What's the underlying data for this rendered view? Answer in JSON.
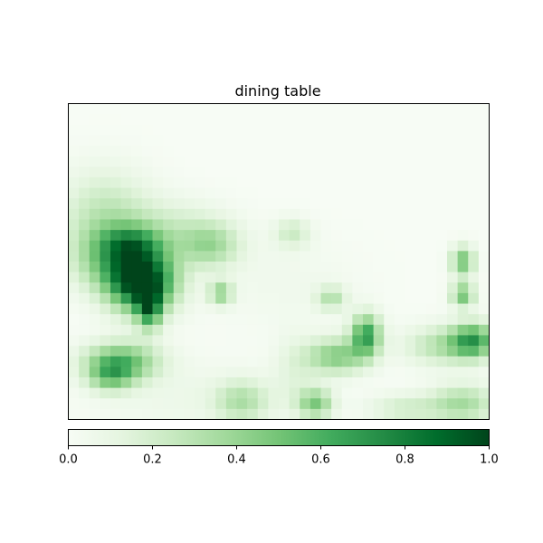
{
  "chart_data": {
    "type": "heatmap",
    "title": "dining table",
    "colormap": "Greens",
    "vmin": 0.0,
    "vmax": 1.0,
    "grid": false,
    "x_ticks_visible": false,
    "y_ticks_visible": false,
    "colorbar": {
      "orientation": "horizontal",
      "placement": "bottom",
      "ticks": [
        0.0,
        0.2,
        0.4,
        0.6,
        0.8,
        1.0
      ],
      "tick_labels": [
        "0.0",
        "0.2",
        "0.4",
        "0.6",
        "0.8",
        "1.0"
      ]
    },
    "rows": 30,
    "cols": 40,
    "blobs": [
      {
        "cx": 6.5,
        "cy": 16.5,
        "sx": 2.2,
        "sy": 2.0,
        "v": 1.0
      },
      {
        "cx": 7.2,
        "cy": 19.0,
        "sx": 0.8,
        "sy": 1.4,
        "v": 0.55
      },
      {
        "cx": 4.0,
        "cy": 14.5,
        "sx": 2.8,
        "sy": 2.0,
        "v": 0.35
      },
      {
        "cx": 3.0,
        "cy": 10.5,
        "sx": 3.0,
        "sy": 3.2,
        "v": 0.28
      },
      {
        "cx": 5.5,
        "cy": 12.8,
        "sx": 2.0,
        "sy": 1.2,
        "v": 0.35
      },
      {
        "cx": 13.0,
        "cy": 13.0,
        "sx": 2.0,
        "sy": 1.5,
        "v": 0.32
      },
      {
        "cx": 9.5,
        "cy": 11.5,
        "sx": 3.5,
        "sy": 2.0,
        "v": 0.18
      },
      {
        "cx": 4.5,
        "cy": 24.0,
        "sx": 2.5,
        "sy": 1.3,
        "v": 0.55
      },
      {
        "cx": 3.5,
        "cy": 25.5,
        "sx": 1.5,
        "sy": 1.0,
        "v": 0.35
      },
      {
        "cx": 14.0,
        "cy": 17.5,
        "sx": 0.8,
        "sy": 0.8,
        "v": 0.4
      },
      {
        "cx": 20.8,
        "cy": 11.8,
        "sx": 1.2,
        "sy": 1.0,
        "v": 0.22
      },
      {
        "cx": 24.5,
        "cy": 18.0,
        "sx": 1.0,
        "sy": 0.8,
        "v": 0.3
      },
      {
        "cx": 27.8,
        "cy": 21.5,
        "sx": 1.0,
        "sy": 1.4,
        "v": 0.65
      },
      {
        "cx": 25.0,
        "cy": 23.5,
        "sx": 2.0,
        "sy": 1.2,
        "v": 0.45
      },
      {
        "cx": 37.0,
        "cy": 14.5,
        "sx": 0.8,
        "sy": 1.0,
        "v": 0.5
      },
      {
        "cx": 37.0,
        "cy": 17.7,
        "sx": 0.8,
        "sy": 0.8,
        "v": 0.5
      },
      {
        "cx": 38.0,
        "cy": 22.0,
        "sx": 1.5,
        "sy": 1.2,
        "v": 0.6
      },
      {
        "cx": 35.0,
        "cy": 22.5,
        "sx": 2.5,
        "sy": 1.3,
        "v": 0.3
      },
      {
        "cx": 16.0,
        "cy": 27.8,
        "sx": 1.8,
        "sy": 1.4,
        "v": 0.3
      },
      {
        "cx": 23.0,
        "cy": 28.0,
        "sx": 1.2,
        "sy": 1.0,
        "v": 0.45
      },
      {
        "cx": 37.0,
        "cy": 28.0,
        "sx": 2.2,
        "sy": 1.3,
        "v": 0.35
      },
      {
        "cx": 31.5,
        "cy": 28.5,
        "sx": 2.5,
        "sy": 1.0,
        "v": 0.2
      },
      {
        "cx": 21.0,
        "cy": 25.0,
        "sx": 1.5,
        "sy": 2.5,
        "v": 0.12
      },
      {
        "cx": 10.5,
        "cy": 27.5,
        "sx": 6.0,
        "sy": 2.5,
        "v": 0.07
      },
      {
        "cx": 20.0,
        "cy": 16.5,
        "sx": 5.0,
        "sy": 3.0,
        "v": 0.05
      }
    ]
  }
}
